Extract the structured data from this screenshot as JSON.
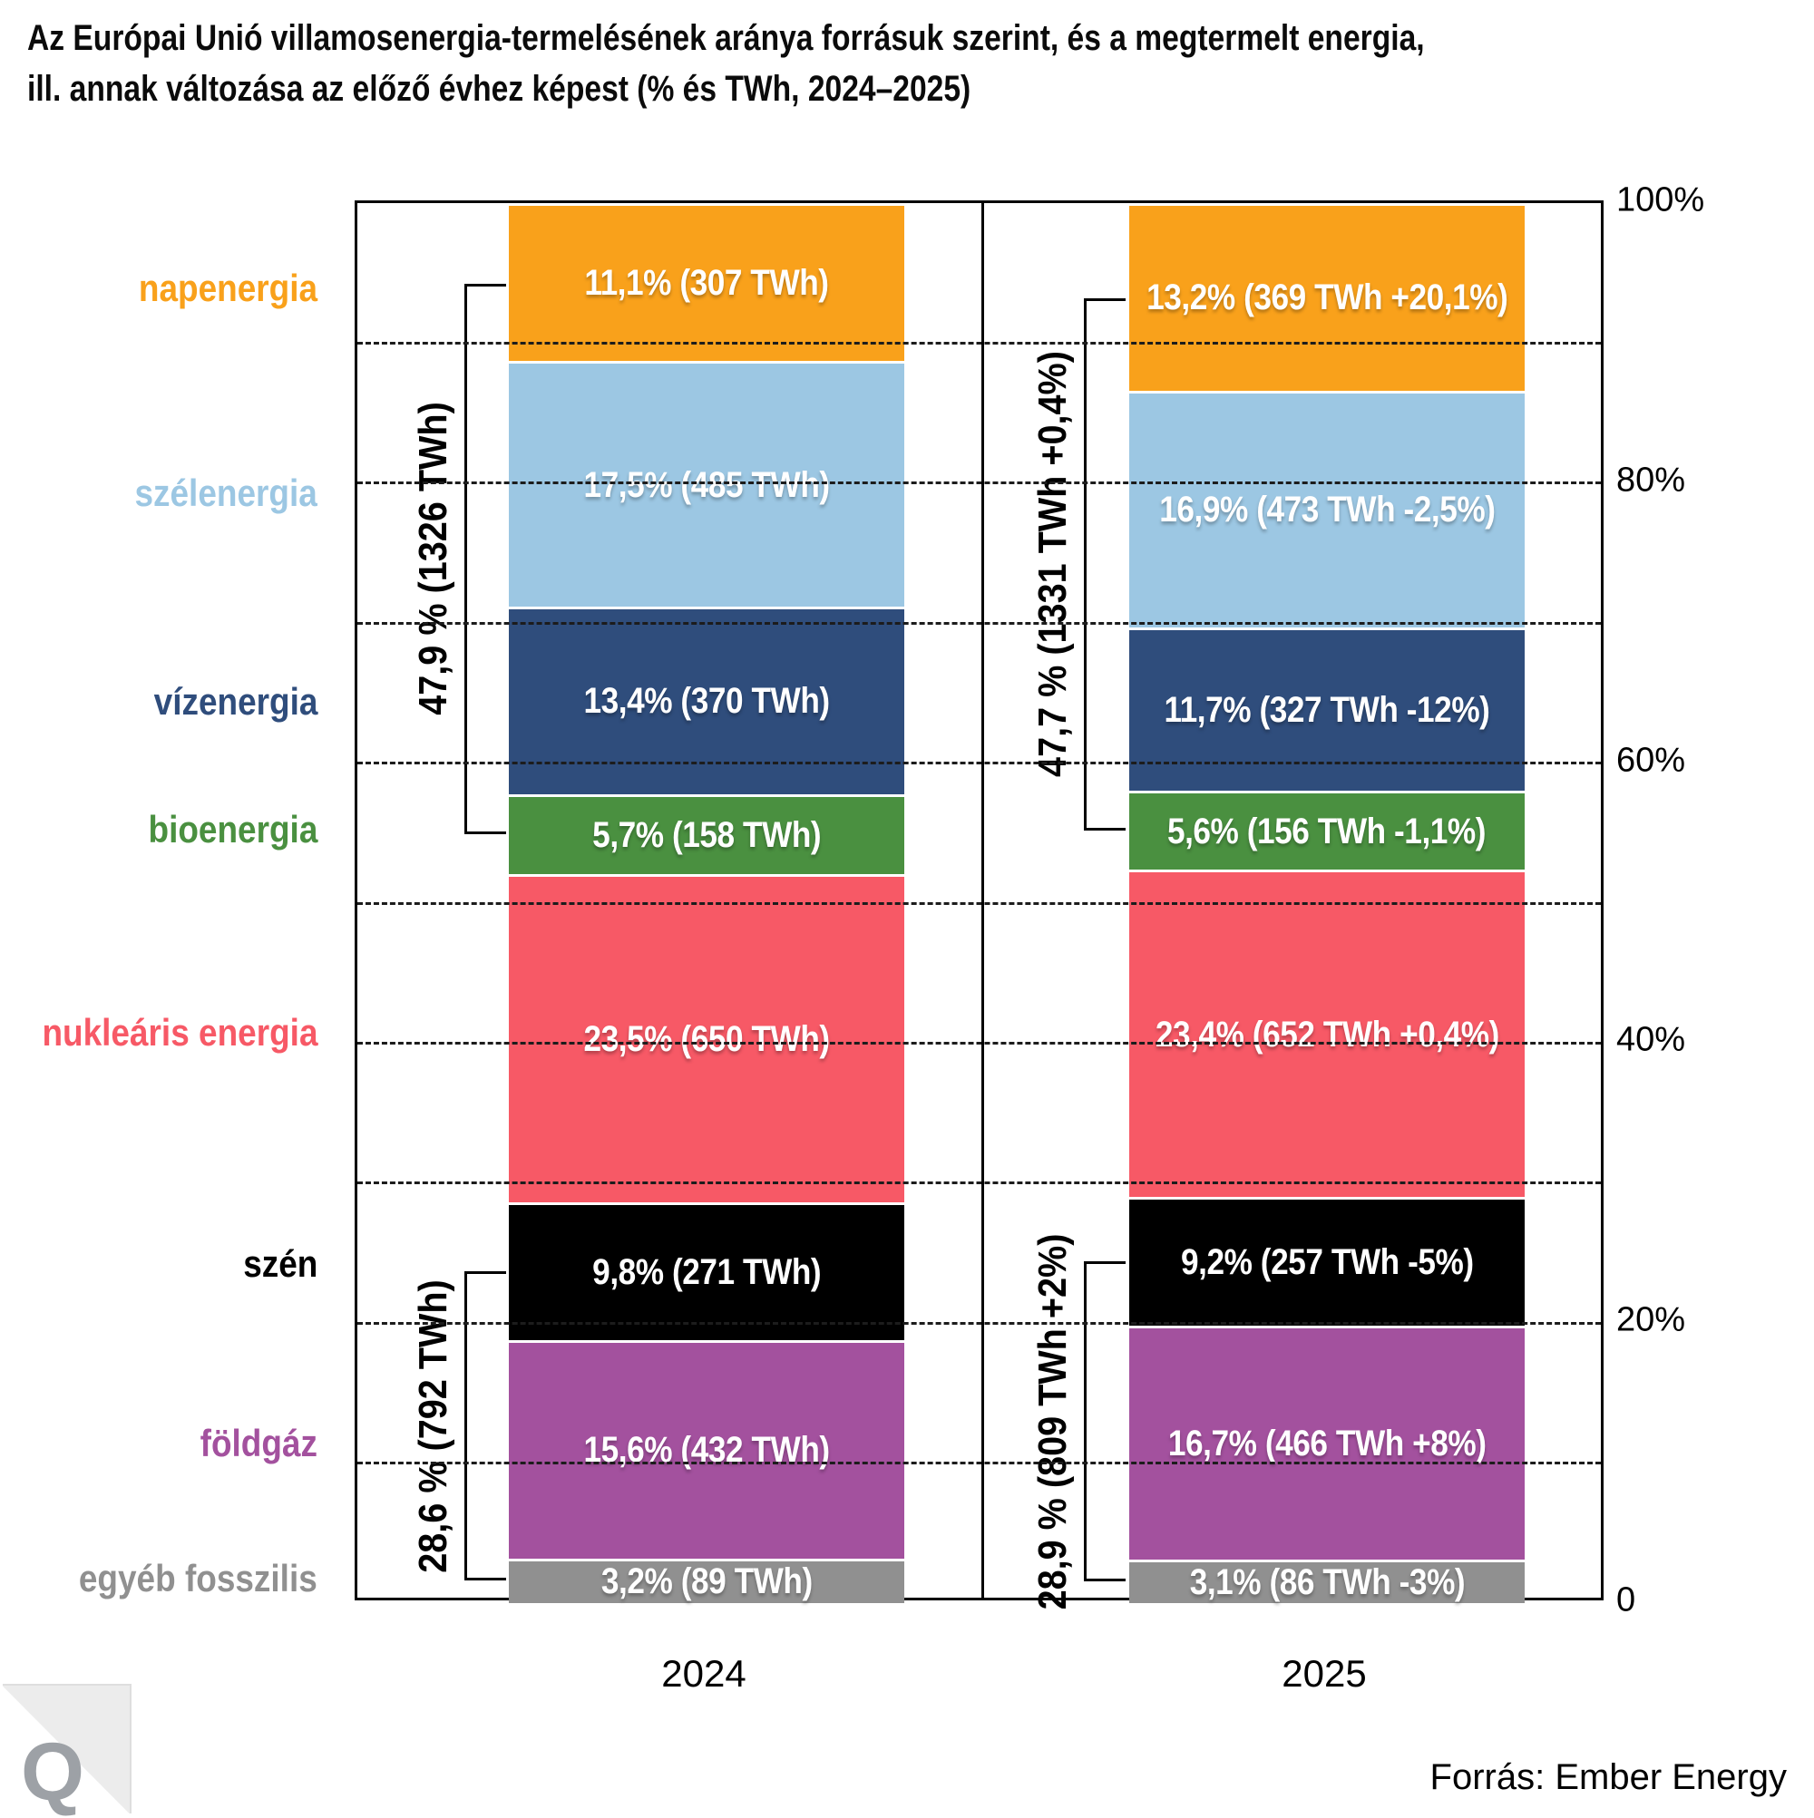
{
  "header": {
    "title_lines": [
      "Az Európai Unió villamosenergia-termelésének aránya forrásuk szerint, és a megtermelt energia,",
      "ill. annak változása az előző évhez képest (% és TWh, 2024–2025)"
    ]
  },
  "chart_data": {
    "type": "bar",
    "subtype": "stacked-percentage-columns",
    "categories": [
      "2024",
      "2025"
    ],
    "ylim": [
      0,
      100
    ],
    "grid": "dashed horizontal every 10%",
    "axis": {
      "ticks": [
        {
          "label": "100%",
          "pct": 100
        },
        {
          "label": "80%",
          "pct": 80
        },
        {
          "label": "60%",
          "pct": 60
        },
        {
          "label": "40%",
          "pct": 40
        },
        {
          "label": "20%",
          "pct": 20
        },
        {
          "label": "0",
          "pct": 0
        }
      ]
    },
    "sources": [
      {
        "label": "napenergia",
        "color": "#F9A11B",
        "values_pct": [
          11.1,
          13.2
        ],
        "bar_labels": [
          "11,1% (307 TWh)",
          "13,2% (369 TWh +20,1%)"
        ]
      },
      {
        "label": "szélenergia",
        "color": "#9CC7E3",
        "values_pct": [
          17.5,
          16.9
        ],
        "bar_labels": [
          "17,5% (485 TWh)",
          "16,9% (473 TWh -2,5%)"
        ]
      },
      {
        "label": "vízenergia",
        "color": "#2F4D7C",
        "values_pct": [
          13.4,
          11.7
        ],
        "bar_labels": [
          "13,4% (370 TWh)",
          "11,7% (327 TWh -12%)"
        ]
      },
      {
        "label": "bioenergia",
        "color": "#4A9040",
        "values_pct": [
          5.7,
          5.6
        ],
        "bar_labels": [
          "5,7% (158 TWh)",
          "5,6% (156 TWh -1,1%)"
        ]
      },
      {
        "label": "nukleáris energia",
        "color": "#F75966",
        "values_pct": [
          23.5,
          23.4
        ],
        "bar_labels": [
          "23,5% (650 TWh)",
          "23,4% (652 TWh +0,4%)"
        ]
      },
      {
        "label": "szén",
        "color": "#000000",
        "values_pct": [
          9.8,
          9.2
        ],
        "bar_labels": [
          "9,8% (271 TWh)",
          "9,2% (257 TWh -5%)"
        ]
      },
      {
        "label": "földgáz",
        "color": "#A3519E",
        "values_pct": [
          15.6,
          16.7
        ],
        "bar_labels": [
          "15,6% (432 TWh)",
          "16,7% (466 TWh +8%)"
        ]
      },
      {
        "label": "egyéb fosszilis",
        "color": "#909090",
        "values_pct": [
          3.2,
          3.1
        ],
        "bar_labels": [
          "3,2% (89 TWh)",
          "3,1% (86 TWh -3%)"
        ]
      }
    ],
    "brackets": [
      {
        "group": "renewables",
        "from": 0,
        "to": 3,
        "labels": [
          "47,9 % (1326 TWh)",
          "47,7 % (1331 TWh +0,4%)"
        ]
      },
      {
        "group": "fossil",
        "from": 5,
        "to": 7,
        "labels": [
          "28,6 % (792 TWh)",
          "28,9 % (809 TWh +2%)"
        ]
      }
    ]
  },
  "footer": {
    "source": "Forrás: Ember Energy",
    "logo_letter": "Q"
  }
}
